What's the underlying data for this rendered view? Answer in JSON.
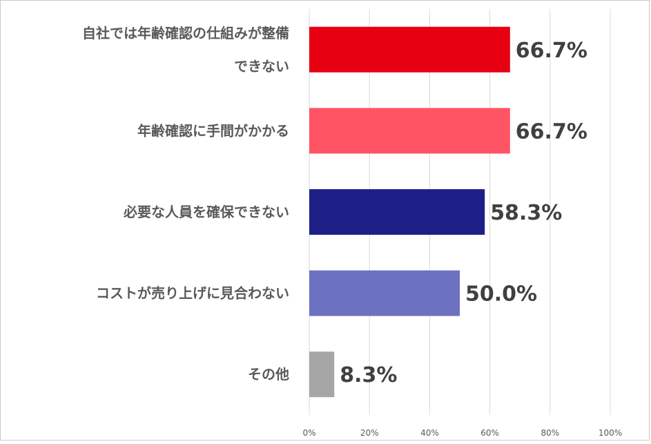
{
  "chart_data": {
    "type": "bar",
    "orientation": "horizontal",
    "categories": [
      [
        "自社では年齢確認の仕組みが整備",
        "できない"
      ],
      [
        "年齢確認に手間がかかる"
      ],
      [
        "必要な人員を確保できない"
      ],
      [
        "コストが売り上げに見合わない"
      ],
      [
        "その他"
      ]
    ],
    "values": [
      66.7,
      66.7,
      58.3,
      50.0,
      8.3
    ],
    "value_labels": [
      "66.7%",
      "66.7%",
      "58.3%",
      "50.0%",
      "8.3%"
    ],
    "colors": [
      "#e60012",
      "#ff5463",
      "#1d1f87",
      "#6d71c2",
      "#a6a6a6"
    ],
    "xlim": [
      0,
      100
    ],
    "xticks": [
      0,
      20,
      40,
      60,
      80,
      100
    ],
    "xtick_labels": [
      "0%",
      "20%",
      "40%",
      "60%",
      "80%",
      "100%"
    ],
    "grid": "vertical",
    "legend": "none",
    "title": "",
    "xlabel": "",
    "ylabel": ""
  }
}
